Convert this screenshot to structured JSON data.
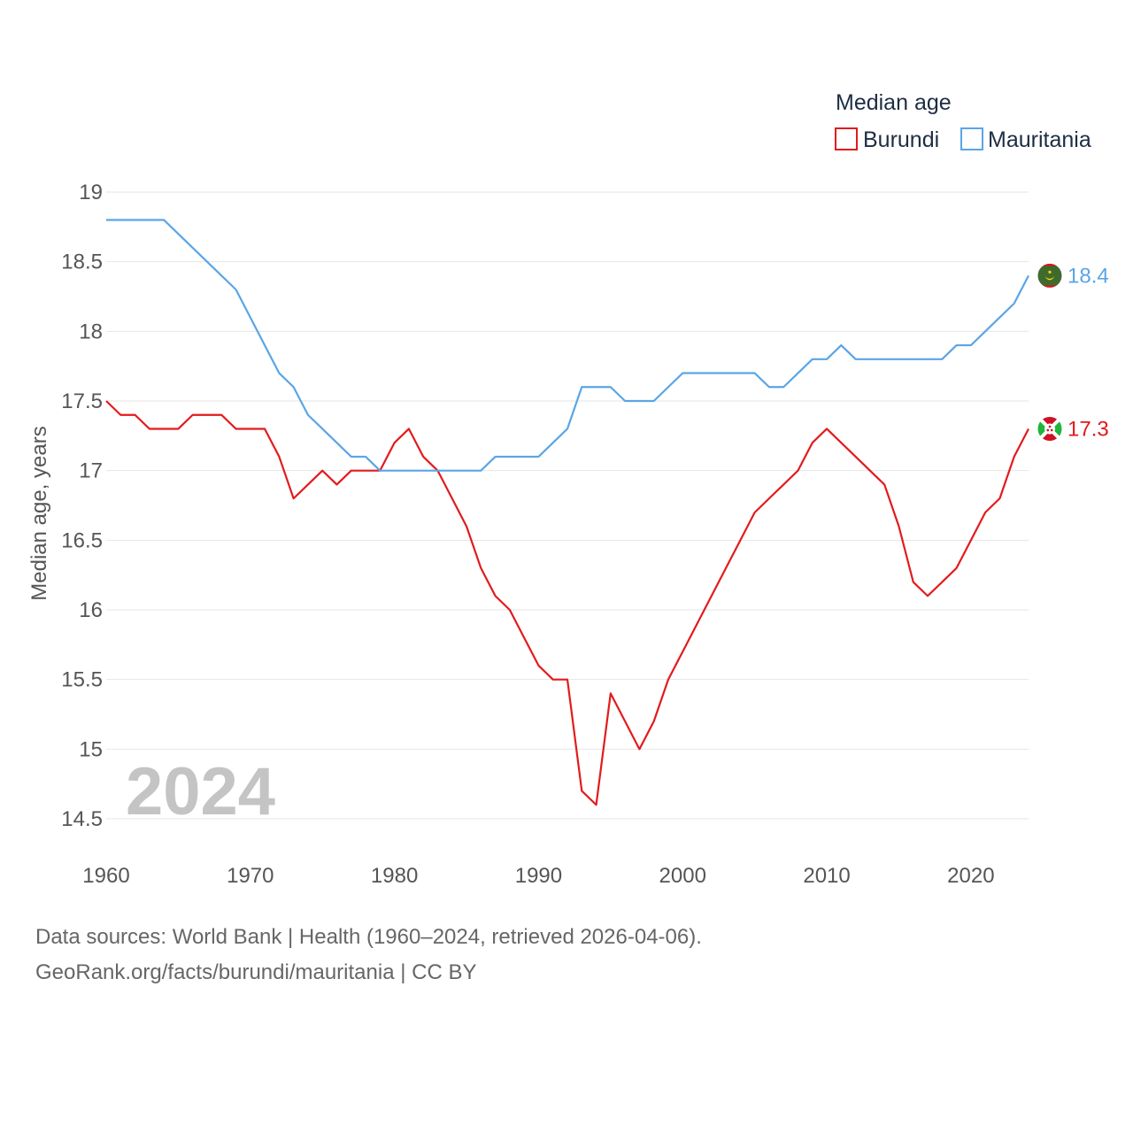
{
  "chart_data": {
    "type": "line",
    "title": "",
    "legend_title": "Median age",
    "xlabel": "",
    "ylabel": "Median age, years",
    "xlim": [
      1960,
      2024
    ],
    "ylim": [
      14.5,
      19
    ],
    "x_ticks": [
      1960,
      1970,
      1980,
      1990,
      2000,
      2010,
      2020
    ],
    "y_ticks": [
      14.5,
      15,
      15.5,
      16,
      16.5,
      17,
      17.5,
      18,
      18.5,
      19
    ],
    "y_tick_labels": [
      "14.5",
      "15",
      "15.5",
      "16",
      "16.5",
      "17",
      "17.5",
      "18",
      "18.5",
      "19"
    ],
    "x_tick_labels": [
      "1960",
      "1970",
      "1980",
      "1990",
      "2000",
      "2010",
      "2020"
    ],
    "grid": true,
    "legend_position": "top-right",
    "year_watermark": "2024",
    "x": [
      1960,
      1961,
      1962,
      1963,
      1964,
      1965,
      1966,
      1967,
      1968,
      1969,
      1970,
      1971,
      1972,
      1973,
      1974,
      1975,
      1976,
      1977,
      1978,
      1979,
      1980,
      1981,
      1982,
      1983,
      1984,
      1985,
      1986,
      1987,
      1988,
      1989,
      1990,
      1991,
      1992,
      1993,
      1994,
      1995,
      1996,
      1997,
      1998,
      1999,
      2000,
      2001,
      2002,
      2003,
      2004,
      2005,
      2006,
      2007,
      2008,
      2009,
      2010,
      2011,
      2012,
      2013,
      2014,
      2015,
      2016,
      2017,
      2018,
      2019,
      2020,
      2021,
      2022,
      2023,
      2024
    ],
    "series": [
      {
        "name": "Burundi",
        "color": "#e31a1c",
        "end_label": "17.3",
        "flag": "burundi",
        "values": [
          17.5,
          17.4,
          17.4,
          17.3,
          17.3,
          17.3,
          17.4,
          17.4,
          17.4,
          17.3,
          17.3,
          17.3,
          17.1,
          16.8,
          16.9,
          17.0,
          16.9,
          17.0,
          17.0,
          17.0,
          17.2,
          17.3,
          17.1,
          17.0,
          16.8,
          16.6,
          16.3,
          16.1,
          16.0,
          15.8,
          15.6,
          15.5,
          15.5,
          14.7,
          14.6,
          15.4,
          15.2,
          15.0,
          15.2,
          15.5,
          15.7,
          15.9,
          16.1,
          16.3,
          16.5,
          16.7,
          16.8,
          16.9,
          17.0,
          17.2,
          17.3,
          17.2,
          17.1,
          17.0,
          16.9,
          16.6,
          16.2,
          16.1,
          16.2,
          16.3,
          16.5,
          16.7,
          16.8,
          17.1,
          17.3
        ]
      },
      {
        "name": "Mauritania",
        "color": "#5aa5e6",
        "end_label": "18.4",
        "flag": "mauritania",
        "values": [
          18.8,
          18.8,
          18.8,
          18.8,
          18.8,
          18.7,
          18.6,
          18.5,
          18.4,
          18.3,
          18.1,
          17.9,
          17.7,
          17.6,
          17.4,
          17.3,
          17.2,
          17.1,
          17.1,
          17.0,
          17.0,
          17.0,
          17.0,
          17.0,
          17.0,
          17.0,
          17.0,
          17.1,
          17.1,
          17.1,
          17.1,
          17.2,
          17.3,
          17.6,
          17.6,
          17.6,
          17.5,
          17.5,
          17.5,
          17.6,
          17.7,
          17.7,
          17.7,
          17.7,
          17.7,
          17.7,
          17.6,
          17.6,
          17.7,
          17.8,
          17.8,
          17.9,
          17.8,
          17.8,
          17.8,
          17.8,
          17.8,
          17.8,
          17.8,
          17.9,
          17.9,
          18.0,
          18.1,
          18.2,
          18.4
        ]
      }
    ]
  },
  "footer": {
    "line1": "Data sources: World Bank | Health (1960–2024, retrieved 2026-04-06).",
    "line2": "GeoRank.org/facts/burundi/mauritania | CC BY"
  }
}
